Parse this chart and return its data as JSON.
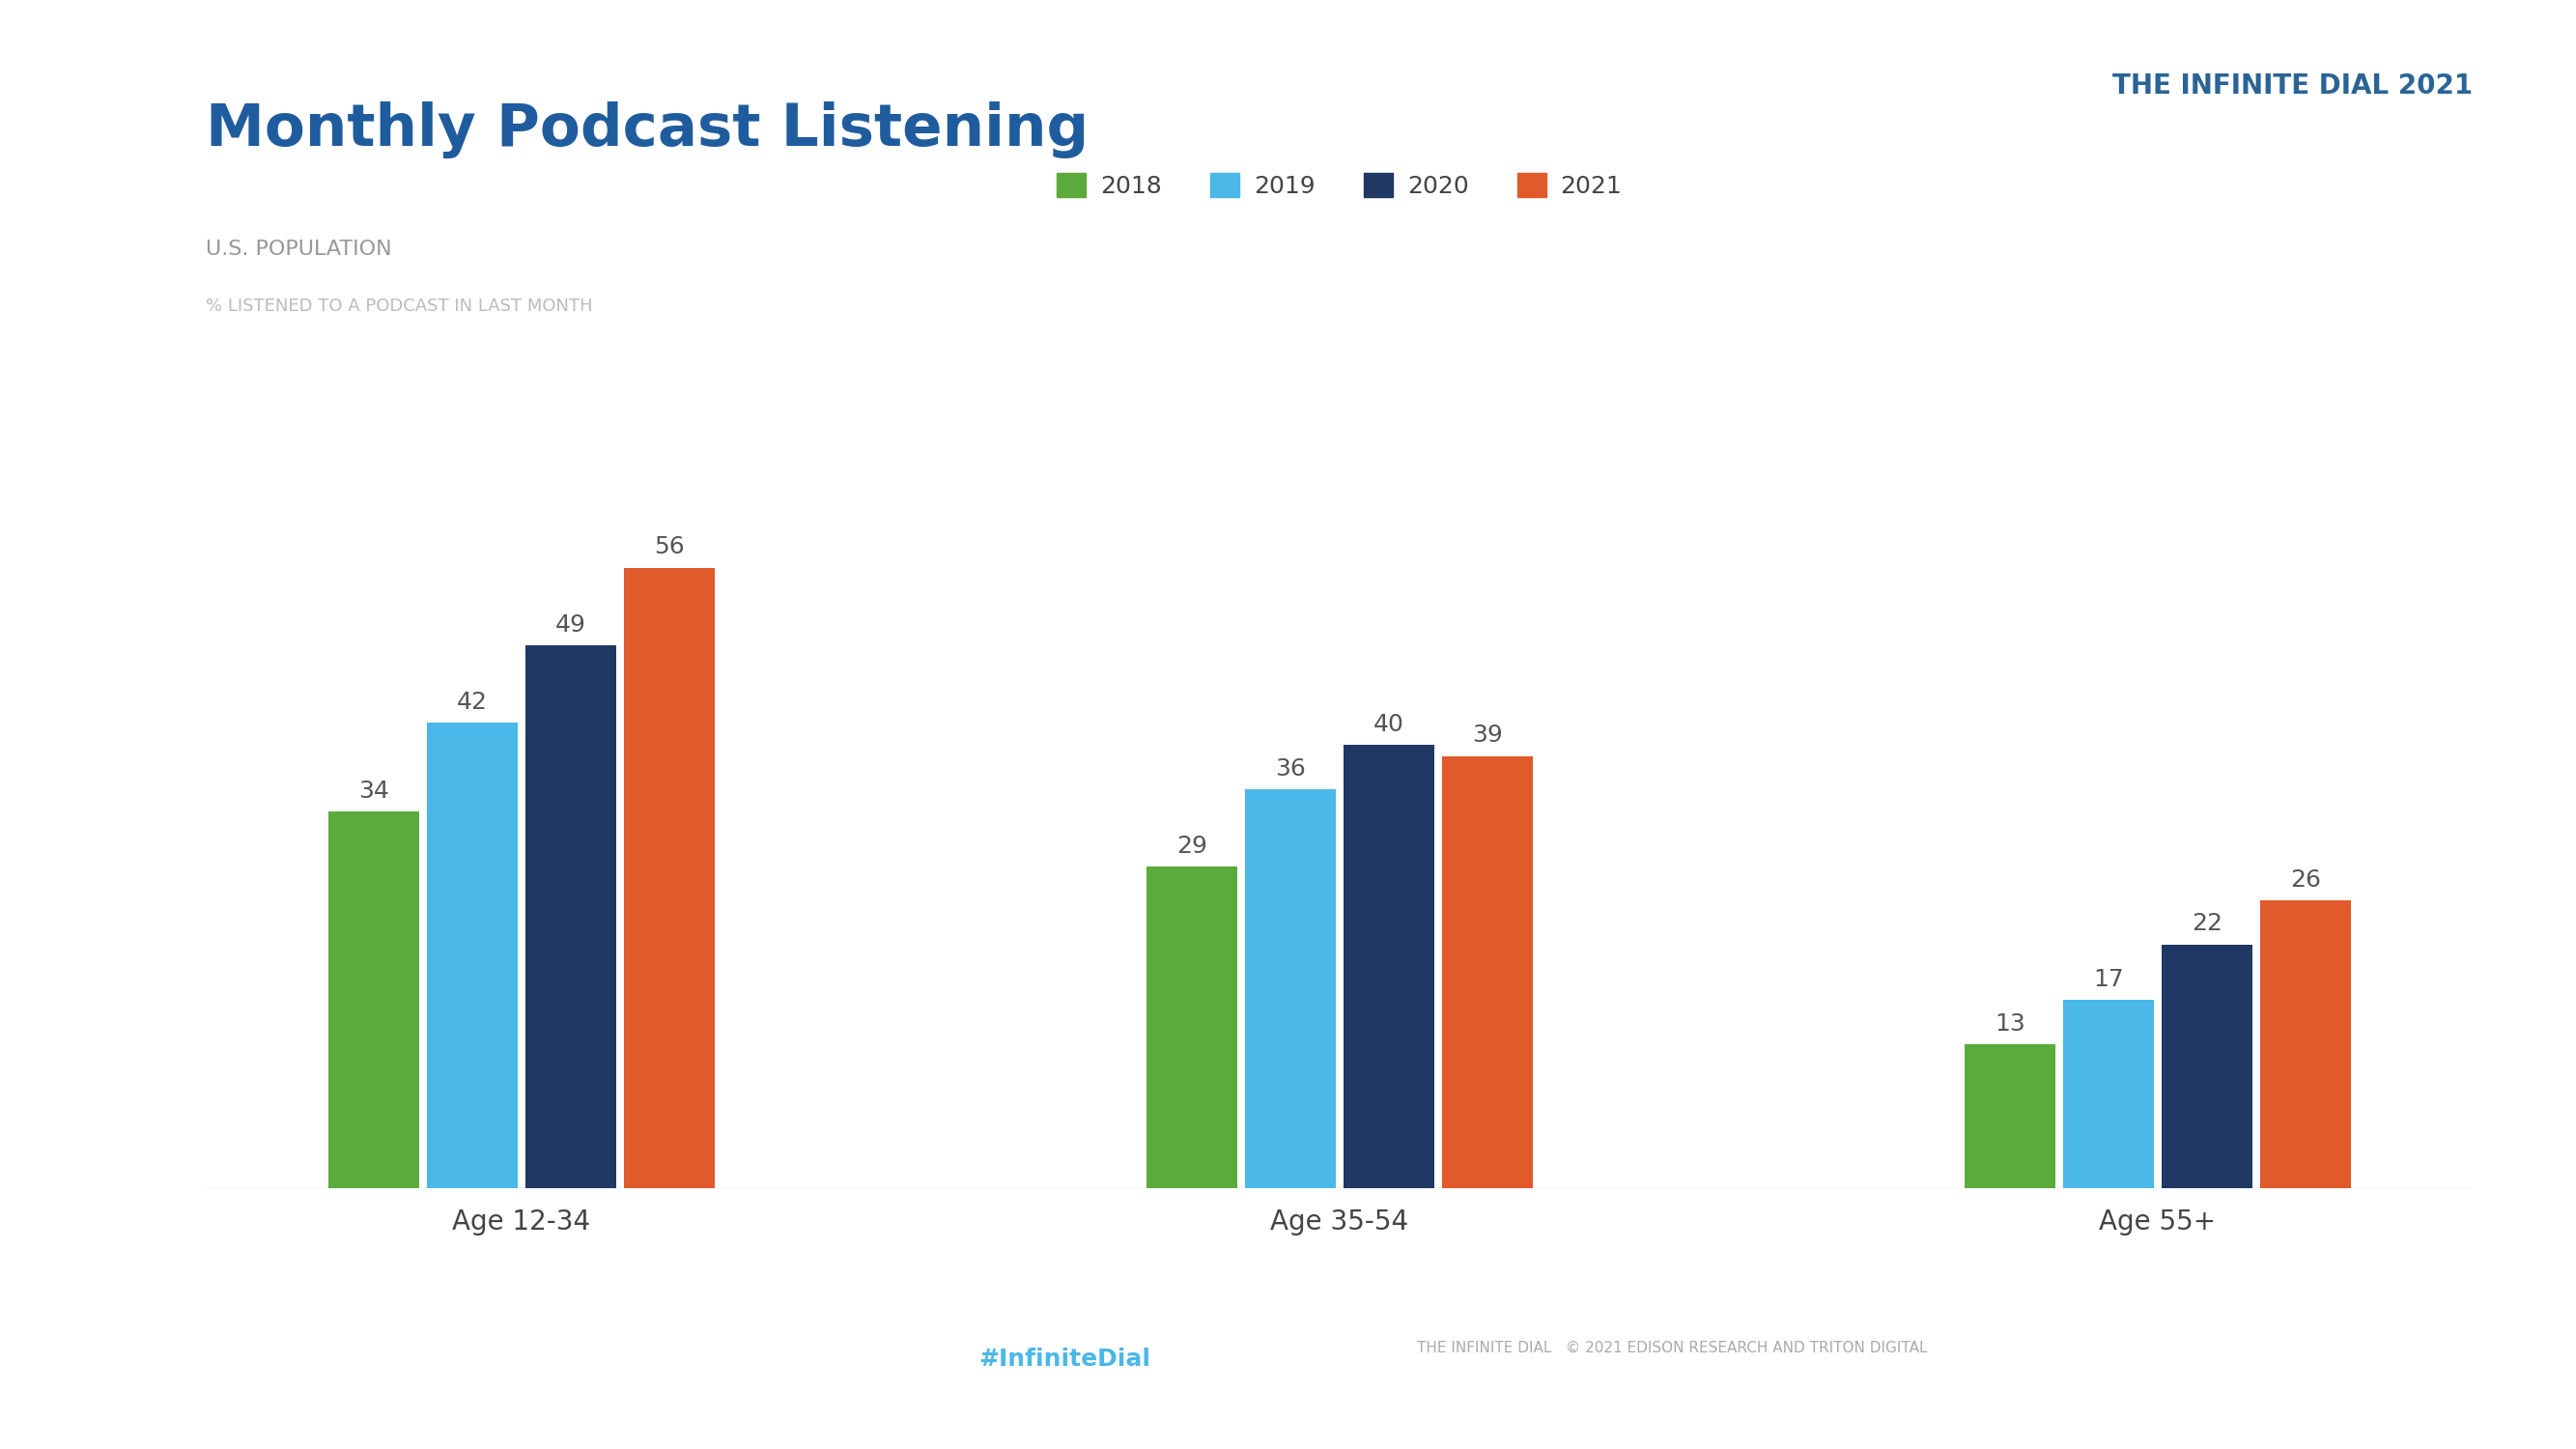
{
  "title": "Monthly Podcast Listening",
  "subtitle": "U.S. POPULATION",
  "subtitle2": "% LISTENED TO A PODCAST IN LAST MONTH",
  "categories": [
    "Age 12-34",
    "Age 35-54",
    "Age 55+"
  ],
  "years": [
    "2018",
    "2019",
    "2020",
    "2021"
  ],
  "values": {
    "Age 12-34": [
      34,
      42,
      49,
      56
    ],
    "Age 35-54": [
      29,
      36,
      40,
      39
    ],
    "Age 55+": [
      13,
      17,
      22,
      26
    ]
  },
  "colors": {
    "2018": "#5aaa3c",
    "2019": "#4ab8e8",
    "2020": "#1f3864",
    "2021": "#e05a2b"
  },
  "background_color": "#ffffff",
  "title_color": "#1f5c9e",
  "subtitle_color": "#999999",
  "subtitle2_color": "#bbbbbb",
  "bar_label_color": "#555555",
  "category_label_color": "#444444",
  "footer_text": "THE INFINITE DIAL   © 2021 EDISON RESEARCH AND TRITON DIGITAL",
  "hashtag": "#InfiniteDial",
  "top_right_label": "THE INFINITE DIAL 2021"
}
